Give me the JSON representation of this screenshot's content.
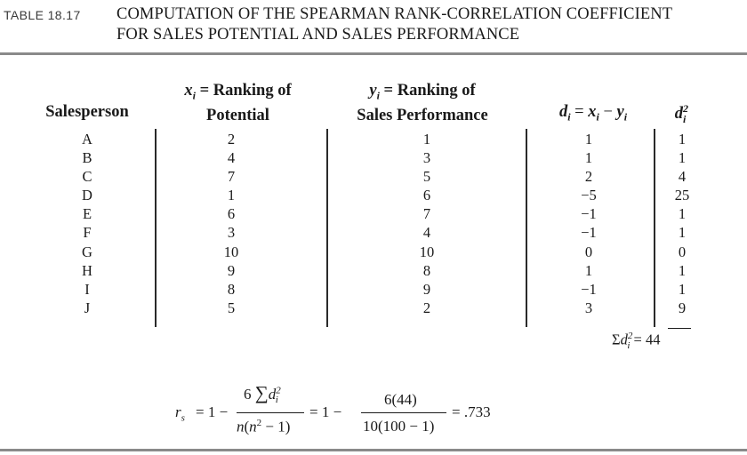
{
  "caption": {
    "label": "TABLE 18.17",
    "line1": "COMPUTATION OF THE SPEARMAN RANK-CORRELATION COEFFICIENT",
    "line2": "FOR SALES POTENTIAL AND SALES PERFORMANCE"
  },
  "headers": {
    "salesperson": "Salesperson",
    "x_var": "x",
    "x_sub": "i",
    "x_eq": " = Ranking of",
    "x_line2": "Potential",
    "y_var": "y",
    "y_sub": "i",
    "y_eq": " = Ranking of",
    "y_line2": "Sales Performance",
    "d_var": "d",
    "d_sub": "i",
    "d_eq": " = ",
    "d_x": "x",
    "d_x_sub": "i",
    "d_minus": " − ",
    "d_y": "y",
    "d_y_sub": "i",
    "d2_var": "d",
    "d2_sub": "i",
    "d2_sup": "2"
  },
  "rows": [
    {
      "salesperson": "A",
      "x": "2",
      "y": "1",
      "d": "1",
      "d2": "1"
    },
    {
      "salesperson": "B",
      "x": "4",
      "y": "3",
      "d": "1",
      "d2": "1"
    },
    {
      "salesperson": "C",
      "x": "7",
      "y": "5",
      "d": "2",
      "d2": "4"
    },
    {
      "salesperson": "D",
      "x": "1",
      "y": "6",
      "d": "−5",
      "d2": "25"
    },
    {
      "salesperson": "E",
      "x": "6",
      "y": "7",
      "d": "−1",
      "d2": "1"
    },
    {
      "salesperson": "F",
      "x": "3",
      "y": "4",
      "d": "−1",
      "d2": "1"
    },
    {
      "salesperson": "G",
      "x": "10",
      "y": "10",
      "d": "0",
      "d2": "0"
    },
    {
      "salesperson": "H",
      "x": "9",
      "y": "8",
      "d": "1",
      "d2": "1"
    },
    {
      "salesperson": "I",
      "x": "8",
      "y": "9",
      "d": "−1",
      "d2": "1"
    },
    {
      "salesperson": "J",
      "x": "5",
      "y": "2",
      "d": "3",
      "d2": "9"
    }
  ],
  "sum": {
    "sigma": "Σ",
    "var": "d",
    "sub": "i",
    "sup": "2",
    "eq": " = ",
    "value": "44"
  },
  "formula": {
    "lhs_var": "r",
    "lhs_sub": "s",
    "eq1": "= 1 −",
    "num1_coef": "6 ",
    "num1_sigma": "∑",
    "num1_var": "d",
    "num1_sub": "i",
    "num1_sup": "2",
    "den1_var": "n",
    "den1_open": "(",
    "den1_var2": "n",
    "den1_sup": "2",
    "den1_rest": " − 1)",
    "eq2": "= 1 −",
    "num2": "6(44)",
    "den2": "10(100 − 1)",
    "eq3": "= .733"
  }
}
